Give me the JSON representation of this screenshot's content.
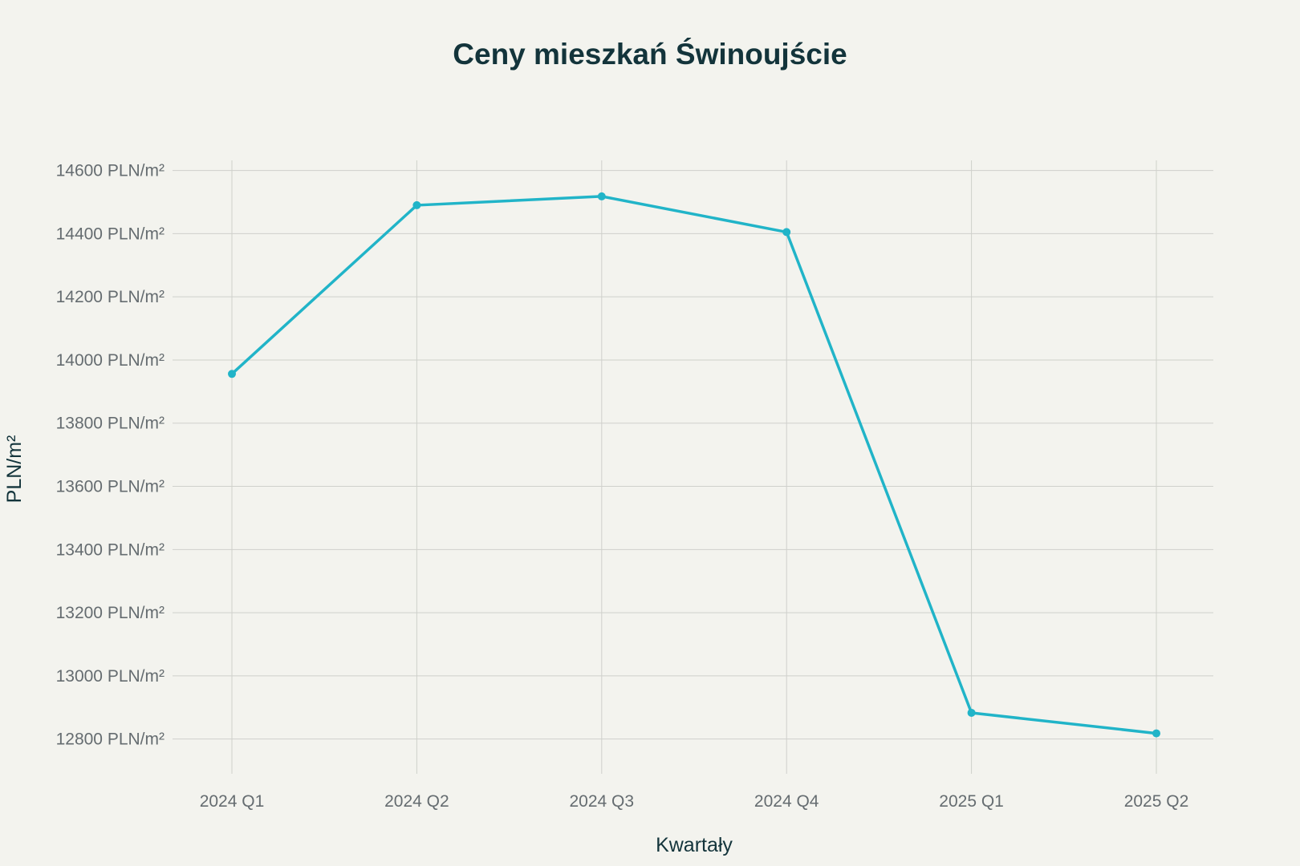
{
  "chart_data": {
    "type": "line",
    "title": "Ceny mieszkań Świnoujście",
    "xlabel": "Kwartały",
    "ylabel": "PLN/m²",
    "categories": [
      "2024 Q1",
      "2024 Q2",
      "2024 Q3",
      "2024 Q4",
      "2025 Q1",
      "2025 Q2"
    ],
    "series": [
      {
        "values": [
          13956,
          14490,
          14518,
          14405,
          12883,
          12818
        ]
      }
    ],
    "yticks": [
      12800,
      13000,
      13200,
      13400,
      13600,
      13800,
      14000,
      14200,
      14400,
      14600
    ],
    "ytick_suffix": " PLN/m²",
    "ylim": [
      12690,
      14632
    ],
    "grid": true,
    "legend": "none",
    "colors": {
      "series": "#21b4c8",
      "background": "#f3f3ee",
      "grid": "#cfd0cb",
      "text": "#13343b",
      "tick_text": "#656c70"
    }
  }
}
